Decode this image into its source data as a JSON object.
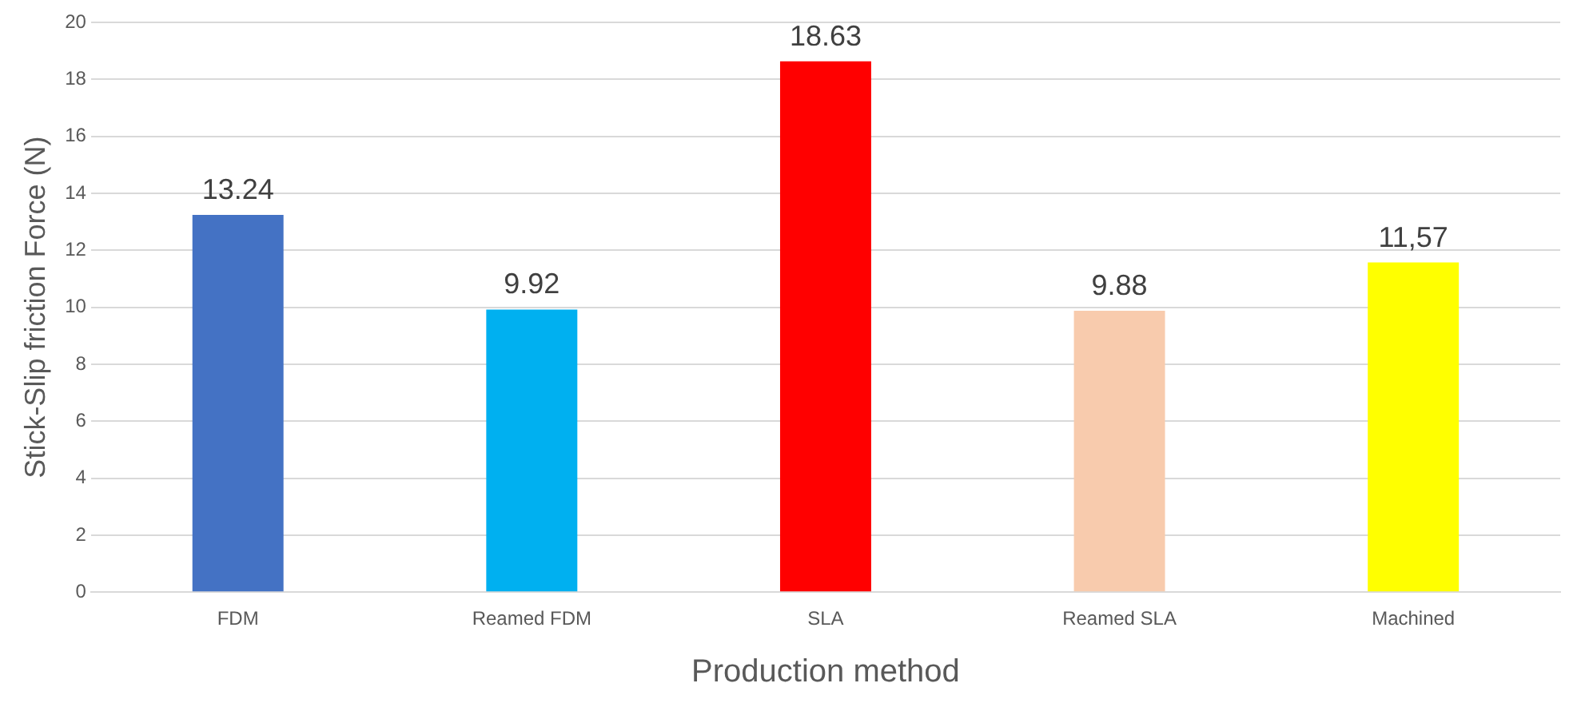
{
  "chart_data": {
    "type": "bar",
    "xlabel": "Production method",
    "ylabel": "Stick-Slip friction Force (N)",
    "categories": [
      "FDM",
      "Reamed FDM",
      "SLA",
      "Reamed SLA",
      "Machined"
    ],
    "values": [
      13.24,
      9.92,
      18.63,
      9.88,
      11.57
    ],
    "colors": [
      "#4472c4",
      "#00b0f0",
      "#ff0000",
      "#f8cbad",
      "#ffff00"
    ],
    "value_labels": [
      "13.24",
      "9.92",
      "18.63",
      "9.88",
      "11,57"
    ],
    "ylim": [
      0,
      20
    ],
    "yticks": [
      0,
      2,
      4,
      6,
      8,
      10,
      12,
      14,
      16,
      18,
      20
    ],
    "grid": "y",
    "legend": false
  }
}
